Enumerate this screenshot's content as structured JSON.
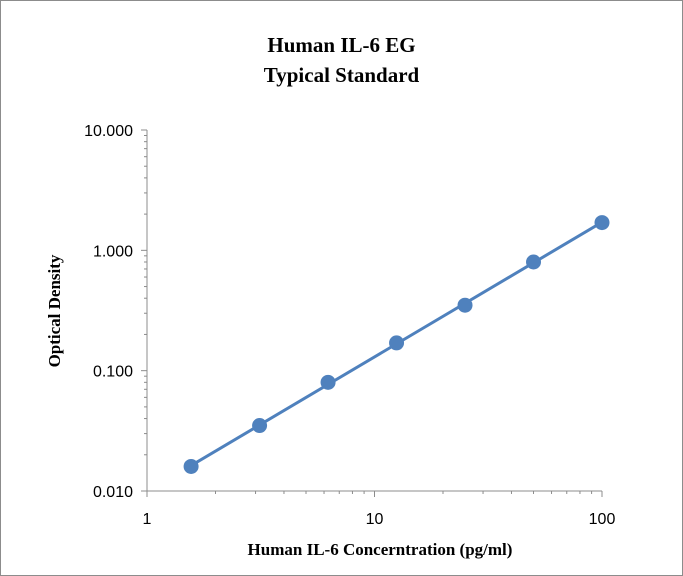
{
  "chart_data": {
    "type": "scatter",
    "title": "Human IL-6 EG",
    "subtitle": "Typical Standard",
    "xlabel": "Human IL-6 Concerntration (pg/ml)",
    "ylabel": "Optical Density",
    "x_scale": "log",
    "y_scale": "log",
    "xlim": [
      1,
      100
    ],
    "ylim": [
      0.01,
      10
    ],
    "x_ticks": [
      1,
      10,
      100
    ],
    "x_tick_labels": [
      "1",
      "10",
      "100"
    ],
    "y_ticks": [
      0.01,
      0.1,
      1,
      10
    ],
    "y_tick_labels": [
      "0.010",
      "0.100",
      "1.000",
      "10.000"
    ],
    "grid": false,
    "legend": "none",
    "series": [
      {
        "x": [
          1.5625,
          3.125,
          6.25,
          12.5,
          25,
          50,
          100
        ],
        "y": [
          0.016,
          0.035,
          0.08,
          0.17,
          0.35,
          0.8,
          1.7
        ],
        "color": "#4f81bd",
        "line": "fitted"
      }
    ]
  }
}
